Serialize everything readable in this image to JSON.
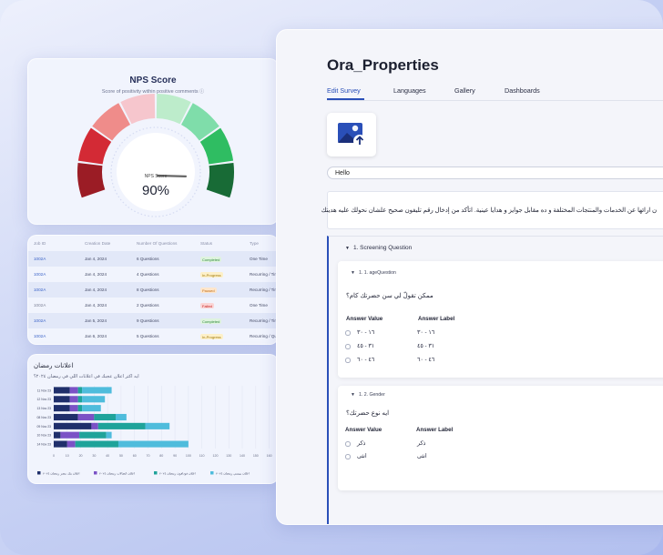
{
  "nps": {
    "title": "NPS Score",
    "subtitle": "Score of positivity within positive comments",
    "info_icon": "info-icon",
    "gauge_label": "NPS Score",
    "gauge_value": "90%",
    "score_fraction": 0.9,
    "segment_colors": [
      "#9b1c25",
      "#d32a35",
      "#ef8c8a",
      "#f6c6cd",
      "#bdeccb",
      "#7fddaa",
      "#2fbd62",
      "#186b36"
    ]
  },
  "table": {
    "headers": [
      "Job ID",
      "Creation Date",
      "Number Of Questions",
      "Status",
      "Type"
    ],
    "rows": [
      {
        "id": "1002A",
        "date": "Jan 4, 2024",
        "questions": "6 Questions",
        "status": "Completed",
        "status_kind": "completed",
        "type": "One Time"
      },
      {
        "id": "1002A",
        "date": "Jan 4, 2024",
        "questions": "4 Questions",
        "status": "In-Progress",
        "status_kind": "progress",
        "type": "Recurring / Time"
      },
      {
        "id": "1002A",
        "date": "Jan 4, 2024",
        "questions": "8 Questions",
        "status": "Paused",
        "status_kind": "paused",
        "type": "Recurring / Time"
      },
      {
        "id": "1002A",
        "date": "Jan 4, 2024",
        "questions": "2 Questions",
        "status": "Failed",
        "status_kind": "failed",
        "type": "One Time"
      },
      {
        "id": "1002A",
        "date": "Jan 5, 2024",
        "questions": "9 Questions",
        "status": "Completed",
        "status_kind": "completed",
        "type": "Recurring / Time"
      },
      {
        "id": "1002A",
        "date": "Jan 6, 2024",
        "questions": "5 Questions",
        "status": "In-Progress",
        "status_kind": "progress",
        "type": "Recurring / Ques"
      }
    ]
  },
  "ads": {
    "title": "اعلانات رمضان",
    "subtitle": "ايه اكثر اعلان عجبك في اعلانات اللي في رمضان ٢٠٢٤؟"
  },
  "chart_data": {
    "type": "bar",
    "orientation": "horizontal",
    "stacked": true,
    "title": "اعلانات رمضان",
    "subtitle": "ايه اكثر اعلان عجبك في اعلانات اللي في رمضان ٢٠٢٤؟",
    "categories": [
      "11 Nov 23",
      "12 Nov 23",
      "13 Nov 23",
      "08 Nov 23",
      "09 Nov 23",
      "10 Nov 23",
      "14 Nov 23"
    ],
    "series": [
      {
        "name": "اعلان بنك مصر رمضان ٢٠٢٤",
        "color": "#1f2f6b",
        "values": [
          12,
          12,
          12,
          18,
          28,
          5,
          10
        ]
      },
      {
        "name": "اعلان اتصالات رمضان ٢٠٢٤",
        "color": "#7b52c6",
        "values": [
          6,
          6,
          6,
          12,
          5,
          14,
          6
        ]
      },
      {
        "name": "اعلان فودافون رمضان ٢٠٢٤",
        "color": "#1fa39a",
        "values": [
          3,
          3,
          3,
          16,
          35,
          20,
          32
        ]
      },
      {
        "name": "اعلان بيبسي رمضان ٢٠٢٤",
        "color": "#4fbcdc",
        "values": [
          22,
          17,
          14,
          8,
          18,
          4,
          52
        ]
      }
    ],
    "xlim": [
      0,
      165
    ],
    "xticks": [
      0,
      10,
      20,
      30,
      40,
      50,
      60,
      70,
      80,
      90,
      100,
      110,
      120,
      130,
      140,
      150,
      160
    ],
    "grid": true,
    "legend": "bottom"
  },
  "survey": {
    "title": "Ora_Properties",
    "tabs": [
      "Edit Survey",
      "Languages",
      "Gallery",
      "Dashboards"
    ],
    "image_icon": "image-upload-icon",
    "title_value": "Hello",
    "description": "ن ارائها عن الخدمات والمنتجات المختلفة و ده مقابل جوايز و هدايا عينية. اتأكد من إدخال رقم تليفون صحيح علشان نحولك عليه هديتك",
    "section_label": "1. Screening Question",
    "questions": [
      {
        "label": "1. 1. ageQuestion",
        "text": "ممكن تقولّ لي سن حضرتك كام؟",
        "col_value": "Answer Value",
        "col_label": "Answer Label",
        "answers": [
          {
            "value": "١٦ - ٣٠",
            "label": "١٦ - ٣٠"
          },
          {
            "value": "٣١ - ٤٥",
            "label": "٣١ - ٤٥"
          },
          {
            "value": "٤٦ - ٦٠",
            "label": "٤٦ - ٦٠"
          }
        ]
      },
      {
        "label": "1. 2. Gender",
        "text": "ايه نوع حضرتك؟",
        "col_value": "Answer Value",
        "col_label": "Answer Label",
        "answers": [
          {
            "value": "ذكر",
            "label": "ذكر"
          },
          {
            "value": "انثى",
            "label": "انثى"
          }
        ]
      }
    ]
  }
}
